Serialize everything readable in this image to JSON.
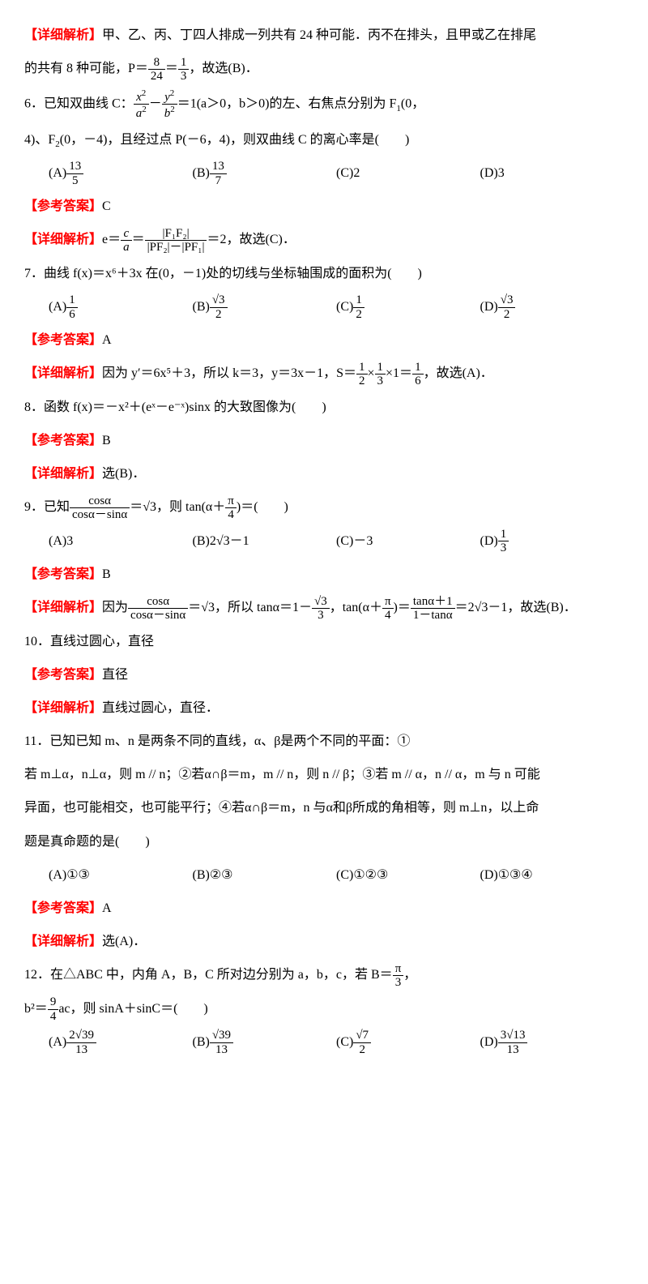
{
  "q5": {
    "analysis_label": "【详细解析】",
    "analysis_text_1": "甲、乙、丙、丁四人排成一列共有 24 种可能．丙不在排头，且甲或乙在排尾",
    "analysis_text_2": "的共有 8 种可能，P＝",
    "frac1_num": "8",
    "frac1_den": "24",
    "eq": "＝",
    "frac2_num": "1",
    "frac2_den": "3",
    "analysis_text_3": "，故选(B)．"
  },
  "q6": {
    "stem_1": "6．已知双曲线 C：",
    "frac_a_num": "x",
    "frac_a_den": "a",
    "minus": "－",
    "frac_b_num": "y",
    "frac_b_den": "b",
    "stem_2": "＝1(a＞0，b＞0)的左、右焦点分别为 F",
    "stem_3": "(0，",
    "stem_4": "4)、F",
    "stem_5": "(0，－4)，且经过点 P(－6，4)，则双曲线 C 的离心率是(　　)",
    "optA_label": "(A)",
    "optA_num": "13",
    "optA_den": "5",
    "optB_label": "(B)",
    "optB_num": "13",
    "optB_den": "7",
    "optC": "(C)2",
    "optD": "(D)3",
    "ans_label": "【参考答案】",
    "ans": "C",
    "ana_label": "【详细解析】",
    "ana_1": "e＝",
    "e_num": "c",
    "e_den": "a",
    "eq": "＝",
    "f_num": "|F₁F₂|",
    "f_den": "|PF₂|－|PF₁|",
    "ana_2": "＝2，故选(C)．"
  },
  "q7": {
    "stem": "7．曲线 f(x)＝x⁶＋3x 在(0，－1)处的切线与坐标轴围成的面积为(　　)",
    "optA_label": "(A)",
    "optA_num": "1",
    "optA_den": "6",
    "optB_label": "(B)",
    "optB_num": "√3",
    "optB_den": "2",
    "optC_label": "(C)",
    "optC_num": "1",
    "optC_den": "2",
    "optD_label": "(D)",
    "optD_num": "√3",
    "optD_den": "2",
    "ans_label": "【参考答案】",
    "ans": "A",
    "ana_label": "【详细解析】",
    "ana_1": "因为 y′＝6x⁵＋3，所以 k＝3，y＝3x－1，S＝",
    "s1_num": "1",
    "s1_den": "2",
    "times": "×",
    "s2_num": "1",
    "s2_den": "3",
    "ana_2": "×1＝",
    "s3_num": "1",
    "s3_den": "6",
    "ana_3": "，故选(A)．"
  },
  "q8": {
    "stem": "8．函数 f(x)＝－x²＋(eˣ－e⁻ˣ)sinx 的大致图像为(　　)",
    "ans_label": "【参考答案】",
    "ans": "B",
    "ana_label": "【详细解析】",
    "ana": "选(B)．"
  },
  "q9": {
    "stem_1": "9．已知",
    "f1_num": "cosα",
    "f1_den": "cosα－sinα",
    "stem_2": "＝√3，则 tan(α＋",
    "pi_num": "π",
    "pi_den": "4",
    "stem_3": ")＝(　　)",
    "optA": "(A)3",
    "optB": "(B)2√3－1",
    "optC": "(C)－3",
    "optD_label": "(D)",
    "optD_num": "1",
    "optD_den": "3",
    "ans_label": "【参考答案】",
    "ans": "B",
    "ana_label": "【详细解析】",
    "ana_1": "因为",
    "a1_num": "cosα",
    "a1_den": "cosα－sinα",
    "ana_2": "＝√3，所以 tanα＝1－",
    "a2_num": "√3",
    "a2_den": "3",
    "ana_3": "，tan(α＋",
    "a3_num": "π",
    "a3_den": "4",
    "ana_4": ")＝",
    "a4_num": "tanα＋1",
    "a4_den": "1－tanα",
    "ana_5": "＝2√3－1，故选(B)．"
  },
  "q10": {
    "stem": "10．直线过圆心，直径",
    "ans_label": "【参考答案】",
    "ans": "直径",
    "ana_label": "【详细解析】",
    "ana": "直线过圆心，直径．"
  },
  "q11": {
    "stem_1": "11．已知已知 m、n 是两条不同的直线，α、β是两个不同的平面：①",
    "stem_2": "若 m⊥α，n⊥α，则 m // n；②若α∩β＝m，m // n，则 n // β；③若 m // α，n // α，m 与 n 可能",
    "stem_3": "异面，也可能相交，也可能平行；④若α∩β＝m，n 与α和β所成的角相等，则 m⊥n，以上命",
    "stem_4": "题是真命题的是(　　)",
    "optA": "(A)①③",
    "optB": "(B)②③",
    "optC": "(C)①②③",
    "optD": "(D)①③④",
    "ans_label": "【参考答案】",
    "ans": "A",
    "ana_label": "【详细解析】",
    "ana": "选(A)．"
  },
  "q12": {
    "stem_1": "12．在△ABC 中，内角 A，B，C 所对边分别为 a，b，c，若 B＝",
    "b_num": "π",
    "b_den": "3",
    "stem_2": "，",
    "stem_3": "b²＝",
    "c_num": "9",
    "c_den": "4",
    "stem_4": "ac，则 sinA＋sinC＝(　　)",
    "optA_label": "(A)",
    "optA_num": "2√39",
    "optA_den": "13",
    "optB_label": "(B)",
    "optB_num": "√39",
    "optB_den": "13",
    "optC_label": "(C)",
    "optC_num": "√7",
    "optC_den": "2",
    "optD_label": "(D)",
    "optD_num": "3√13",
    "optD_den": "13"
  }
}
